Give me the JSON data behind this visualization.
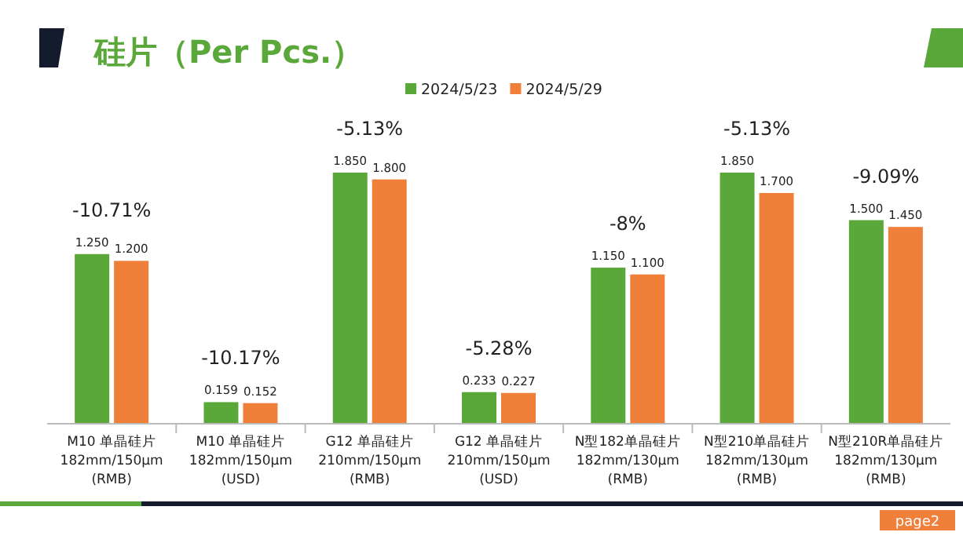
{
  "chart_data": {
    "type": "bar",
    "title": "硅片（Per Pcs.）",
    "relative": false,
    "legend": "top",
    "categories": [
      "M10 单晶硅片\n182mm/150μm\n(RMB)",
      "M10 单晶硅片\n182mm/150μm\n(USD)",
      "G12 单晶硅片\n210mm/150μm\n(RMB)",
      "G12 单晶硅片\n210mm/150μm\n(USD)",
      "N型182单晶硅片\n182mm/130μm\n(RMB)",
      "N型210单晶硅片\n182mm/130μm\n(RMB)",
      "N型210R单晶硅片\n182mm/130μm\n(RMB)"
    ],
    "series": [
      {
        "name": "2024/5/23",
        "color": "#5ba83a",
        "values": [
          1.25,
          0.159,
          1.85,
          0.233,
          1.15,
          1.85,
          1.5
        ],
        "value_labels": [
          "1.250",
          "0.159",
          "1.850",
          "0.233",
          "1.150",
          "1.850",
          "1.500"
        ]
      },
      {
        "name": "2024/5/29",
        "color": "#f07f3a",
        "values": [
          1.2,
          0.152,
          1.8,
          0.227,
          1.1,
          1.7,
          1.45
        ],
        "value_labels": [
          "1.200",
          "0.152",
          "1.800",
          "0.227",
          "1.100",
          "1.700",
          "1.450"
        ]
      }
    ],
    "annotations": [
      "-10.71%",
      "-10.17%",
      "-5.13%",
      "-5.28%",
      "-8%",
      "-5.13%",
      "-9.09%",
      "page2"
    ]
  }
}
